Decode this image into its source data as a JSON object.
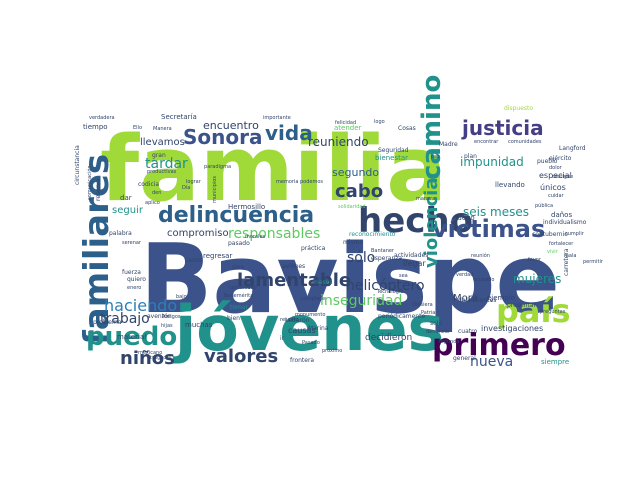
{
  "word_cloud": {
    "background": "#ffffff",
    "palette": [
      "#440154",
      "#3b528b",
      "#21918c",
      "#5ec962",
      "#a0da39",
      "#fde725"
    ],
    "words": [
      {
        "text": "Bavispe",
        "color": "#3b528b"
      },
      {
        "text": "familia",
        "color": "#a0da39"
      },
      {
        "text": "jóvenes",
        "color": "#21918c"
      },
      {
        "text": "hecho",
        "color": "#31446b"
      },
      {
        "text": "familiares",
        "color": "#2c5f8a"
      },
      {
        "text": "delincuencia",
        "color": "#2c5f8a"
      },
      {
        "text": "justicia",
        "color": "#433e85"
      },
      {
        "text": "país",
        "color": "#a0da39"
      },
      {
        "text": "primero",
        "color": "#440154"
      },
      {
        "text": "víctimas",
        "color": "#3b528b"
      },
      {
        "text": "camino",
        "color": "#21918c"
      },
      {
        "text": "violencia",
        "color": "#21918c"
      },
      {
        "text": "puedo",
        "color": "#21918c"
      },
      {
        "text": "lamentable",
        "color": "#31446b"
      },
      {
        "text": "Sonora",
        "color": "#3b528b"
      },
      {
        "text": "vida",
        "color": "#2c5f8a"
      },
      {
        "text": "niños",
        "color": "#31446b"
      },
      {
        "text": "valores",
        "color": "#31446b"
      },
      {
        "text": "inseguridad",
        "color": "#5ec962"
      },
      {
        "text": "haciendo",
        "color": "#2c7fb8"
      },
      {
        "text": "cabo",
        "color": "#31446b"
      },
      {
        "text": "nueva",
        "color": "#3b528b"
      },
      {
        "text": "sólo",
        "color": "#31446b"
      },
      {
        "text": "helicóptero",
        "color": "#31446b"
      },
      {
        "text": "responsables",
        "color": "#5ec962"
      },
      {
        "text": "trabajo",
        "color": "#31446b"
      },
      {
        "text": "seis meses",
        "color": "#21918c"
      },
      {
        "text": "mujeres",
        "color": "#21918c"
      },
      {
        "text": "impunidad",
        "color": "#21918c"
      },
      {
        "text": "tardar",
        "color": "#21918c"
      },
      {
        "text": "reuniendo",
        "color": "#31446b"
      },
      {
        "text": "encuentro",
        "color": "#31446b"
      },
      {
        "text": "segundo",
        "color": "#2c5f8a"
      },
      {
        "text": "llevamos",
        "color": "#31446b"
      },
      {
        "text": "compromiso",
        "color": "#31446b"
      },
      {
        "text": "seguir",
        "color": "#21918c"
      },
      {
        "text": "Mora",
        "color": "#31446b"
      },
      {
        "text": "Hermosillo",
        "color": "#31446b"
      },
      {
        "text": "Secretaría",
        "color": "#31446b"
      },
      {
        "text": "especial",
        "color": "#31446b"
      },
      {
        "text": "llevando",
        "color": "#31446b"
      },
      {
        "text": "únicos",
        "color": "#31446b"
      },
      {
        "text": "daños",
        "color": "#31446b"
      },
      {
        "text": "nuevo",
        "color": "#31446b"
      },
      {
        "text": "llegar",
        "color": "#31446b"
      },
      {
        "text": "decidieron",
        "color": "#31446b"
      },
      {
        "text": "investigaciones",
        "color": "#31446b"
      },
      {
        "text": "ejemplo",
        "color": "#31446b"
      },
      {
        "text": "material",
        "color": "#31446b"
      },
      {
        "text": "causas",
        "color": "#31446b"
      },
      {
        "text": "muchas",
        "color": "#31446b"
      },
      {
        "text": "siempre",
        "color": "#21918c"
      },
      {
        "text": "general",
        "color": "#31446b"
      },
      {
        "text": "Seguridad",
        "color": "#31446b"
      },
      {
        "text": "Madre",
        "color": "#31446b"
      },
      {
        "text": "plan",
        "color": "#31446b"
      },
      {
        "text": "pueblo",
        "color": "#31446b"
      },
      {
        "text": "Langford",
        "color": "#31446b"
      },
      {
        "text": "ejército",
        "color": "#31446b"
      },
      {
        "text": "castigue",
        "color": "#31446b"
      },
      {
        "text": "dolor",
        "color": "#31446b"
      },
      {
        "text": "comunidad",
        "color": "#31446b"
      },
      {
        "text": "LeBarón",
        "color": "#31446b"
      },
      {
        "text": "aviones",
        "color": "#31446b"
      },
      {
        "text": "práctica",
        "color": "#31446b"
      },
      {
        "text": "mismo",
        "color": "#31446b"
      },
      {
        "text": "esperanza",
        "color": "#31446b"
      },
      {
        "text": "actividades",
        "color": "#31446b"
      },
      {
        "text": "bienestar",
        "color": "#21918c"
      },
      {
        "text": "atender",
        "color": "#5ec962"
      },
      {
        "text": "felicidad",
        "color": "#31446b"
      },
      {
        "text": "importante",
        "color": "#31446b"
      },
      {
        "text": "dispuesto",
        "color": "#a0da39"
      },
      {
        "text": "comunidades",
        "color": "#31446b"
      },
      {
        "text": "encontrar",
        "color": "#31446b"
      },
      {
        "text": "tiempo",
        "color": "#31446b"
      },
      {
        "text": "verdadera",
        "color": "#31446b"
      },
      {
        "text": "gran",
        "color": "#31446b"
      },
      {
        "text": "dar",
        "color": "#31446b"
      },
      {
        "text": "palabra",
        "color": "#31446b"
      },
      {
        "text": "serenar",
        "color": "#31446b"
      },
      {
        "text": "reserva",
        "color": "#31446b"
      },
      {
        "text": "comunicación",
        "color": "#31446b"
      },
      {
        "text": "fuerza",
        "color": "#31446b"
      },
      {
        "text": "quiero",
        "color": "#31446b"
      },
      {
        "text": "regresar",
        "color": "#31446b"
      },
      {
        "text": "casos",
        "color": "#31446b"
      },
      {
        "text": "sino",
        "color": "#31446b"
      },
      {
        "text": "tomar",
        "color": "#21918c"
      },
      {
        "text": "bien",
        "color": "#31446b"
      },
      {
        "text": "pasado",
        "color": "#31446b"
      },
      {
        "text": "morales",
        "color": "#31446b"
      },
      {
        "text": "rescate",
        "color": "#31446b"
      },
      {
        "text": "monumento",
        "color": "#31446b"
      },
      {
        "text": "Marina",
        "color": "#31446b"
      },
      {
        "text": "meses",
        "color": "#21918c"
      },
      {
        "text": "reconocimiento",
        "color": "#21918c"
      },
      {
        "text": "solidaridad",
        "color": "#5ec962"
      },
      {
        "text": "periódicamente",
        "color": "#31446b"
      },
      {
        "text": "presentar",
        "color": "#31446b"
      },
      {
        "text": "cuatro",
        "color": "#31446b"
      },
      {
        "text": "delincuentes",
        "color": "#31446b"
      },
      {
        "text": "solo",
        "color": "#31446b"
      },
      {
        "text": "problema",
        "color": "#31446b"
      },
      {
        "text": "aventón",
        "color": "#31446b"
      },
      {
        "text": "mexicano",
        "color": "#31446b"
      },
      {
        "text": "Amigos",
        "color": "#31446b"
      },
      {
        "text": "frontera",
        "color": "#31446b"
      },
      {
        "text": "próximo",
        "color": "#31446b"
      },
      {
        "text": "paz",
        "color": "#31446b"
      },
      {
        "text": "circunstancia",
        "color": "#31446b"
      },
      {
        "text": "contubernio",
        "color": "#31446b"
      },
      {
        "text": "carretera",
        "color": "#31446b"
      },
      {
        "text": "individualismo",
        "color": "#31446b"
      },
      {
        "text": "cumplir",
        "color": "#31446b"
      },
      {
        "text": "Cosas",
        "color": "#31446b"
      },
      {
        "text": "logo",
        "color": "#31446b"
      },
      {
        "text": "reunión",
        "color": "#31446b"
      },
      {
        "text": "ocupado",
        "color": "#31446b"
      },
      {
        "text": "Quisiera",
        "color": "#31446b"
      },
      {
        "text": "Patria",
        "color": "#31446b"
      },
      {
        "text": "verdad",
        "color": "#31446b"
      },
      {
        "text": "codicia",
        "color": "#31446b"
      },
      {
        "text": "productivas",
        "color": "#31446b"
      },
      {
        "text": "lograr",
        "color": "#31446b"
      },
      {
        "text": "paradigma",
        "color": "#31446b"
      },
      {
        "text": "municipios",
        "color": "#31446b"
      },
      {
        "text": "preguntas",
        "color": "#31446b"
      },
      {
        "text": "permitir",
        "color": "#31446b"
      },
      {
        "text": "vivir",
        "color": "#5ec962"
      },
      {
        "text": "fortalecer",
        "color": "#31446b"
      },
      {
        "text": "denuncia",
        "color": "#31446b"
      },
      {
        "text": "sea",
        "color": "#31446b"
      },
      {
        "text": "favor",
        "color": "#31446b"
      },
      {
        "text": "Ello",
        "color": "#31446b"
      },
      {
        "text": "Manera",
        "color": "#31446b"
      },
      {
        "text": "manera",
        "color": "#31446b"
      },
      {
        "text": "pública",
        "color": "#31446b"
      },
      {
        "text": "segunda",
        "color": "#31446b"
      },
      {
        "text": "mala",
        "color": "#31446b"
      },
      {
        "text": "tragedia",
        "color": "#31446b"
      },
      {
        "text": "complace",
        "color": "#31446b"
      },
      {
        "text": "memoria",
        "color": "#31446b"
      },
      {
        "text": "podemos",
        "color": "#31446b"
      },
      {
        "text": "Día",
        "color": "#31446b"
      },
      {
        "text": "aplico",
        "color": "#31446b"
      },
      {
        "text": "Pasado",
        "color": "#31446b"
      },
      {
        "text": "den",
        "color": "#31446b"
      },
      {
        "text": "ir",
        "color": "#31446b"
      },
      {
        "text": "bajo",
        "color": "#31446b"
      },
      {
        "text": "hijas",
        "color": "#31446b"
      },
      {
        "text": "Benemérita",
        "color": "#31446b"
      },
      {
        "text": "Bantaner",
        "color": "#31446b"
      },
      {
        "text": "cuidar",
        "color": "#31446b"
      },
      {
        "text": "enero",
        "color": "#31446b"
      },
      {
        "text": "Tecnología",
        "color": "#31446b"
      }
    ]
  }
}
